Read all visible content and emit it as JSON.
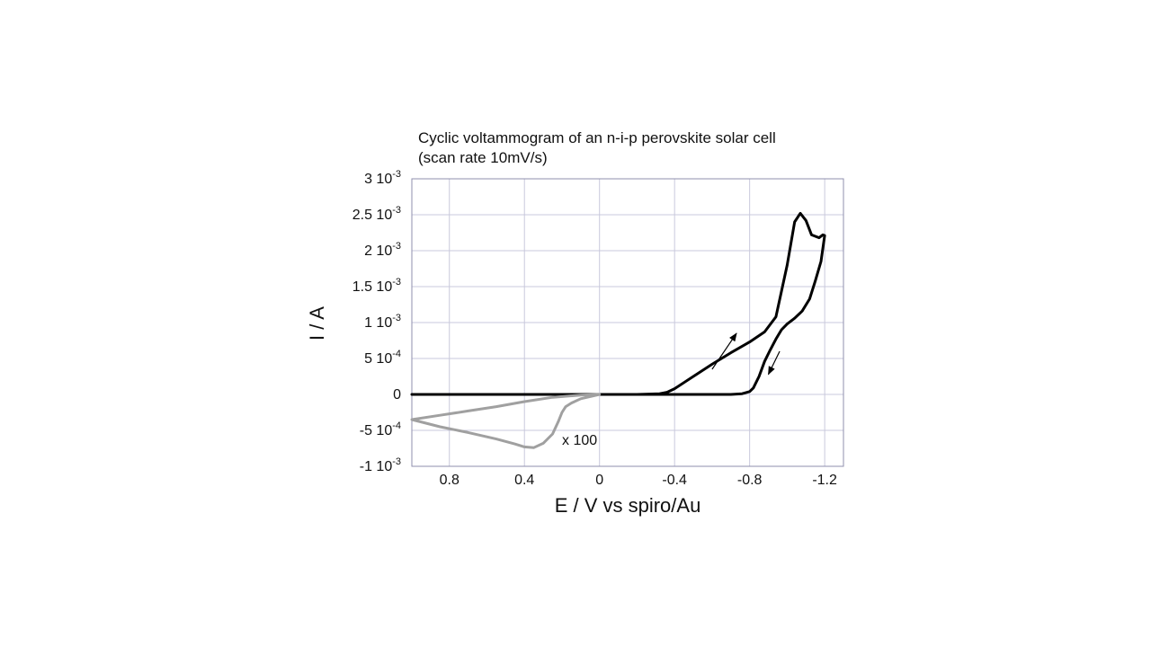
{
  "chart_data": {
    "type": "line",
    "title_lines": [
      "Cyclic voltammogram of an n-i-p perovskite solar cell",
      "(scan rate 10mV/s)"
    ],
    "xlabel": "E / V vs spiro/Au",
    "ylabel": "I / A",
    "xlim": [
      1.0,
      -1.3
    ],
    "ylim": [
      -0.001,
      0.003
    ],
    "x_reversed": true,
    "grid": true,
    "x_ticks": [
      {
        "value": 0.8,
        "label": "0.8"
      },
      {
        "value": 0.4,
        "label": "0.4"
      },
      {
        "value": 0,
        "label": "0"
      },
      {
        "value": -0.4,
        "label": "-0.4"
      },
      {
        "value": -0.8,
        "label": "-0.8"
      },
      {
        "value": -1.2,
        "label": "-1.2"
      }
    ],
    "y_ticks": [
      {
        "value": 0.003,
        "mantissa": "3 10",
        "exp": "-3"
      },
      {
        "value": 0.0025,
        "mantissa": "2.5 10",
        "exp": "-3"
      },
      {
        "value": 0.002,
        "mantissa": "2 10",
        "exp": "-3"
      },
      {
        "value": 0.0015,
        "mantissa": "1.5 10",
        "exp": "-3"
      },
      {
        "value": 0.001,
        "mantissa": "1 10",
        "exp": "-3"
      },
      {
        "value": 0.0005,
        "mantissa": "5 10",
        "exp": "-4"
      },
      {
        "value": 0,
        "mantissa": "0",
        "exp": ""
      },
      {
        "value": -0.0005,
        "mantissa": "-5 10",
        "exp": "-4"
      },
      {
        "value": -0.001,
        "mantissa": "-1 10",
        "exp": "-3"
      }
    ],
    "series": [
      {
        "color": "#000000",
        "x": [
          1.0,
          0.5,
          0.0,
          -0.2,
          -0.32,
          -0.36,
          -0.4,
          -0.5,
          -0.6,
          -0.7,
          -0.8,
          -0.88,
          -0.94,
          -1.0,
          -1.04,
          -1.07,
          -1.1,
          -1.13,
          -1.17,
          -1.19,
          -1.2,
          -1.18,
          -1.15,
          -1.12,
          -1.08,
          -1.04,
          -1.0,
          -0.97,
          -0.94,
          -0.91,
          -0.88,
          -0.85,
          -0.82,
          -0.8,
          -0.76,
          -0.7,
          -0.6,
          -0.4,
          -0.2,
          0.0
        ],
        "y": [
          0.0,
          0.0,
          0.0,
          0.0,
          1e-05,
          3e-05,
          8e-05,
          0.00025,
          0.00042,
          0.00058,
          0.00073,
          0.00087,
          0.00108,
          0.0018,
          0.0024,
          0.00252,
          0.00242,
          0.00222,
          0.00218,
          0.00222,
          0.00221,
          0.00185,
          0.00158,
          0.00133,
          0.00116,
          0.00106,
          0.00098,
          0.0009,
          0.00077,
          0.00062,
          0.00046,
          0.00025,
          9e-05,
          4e-05,
          1e-05,
          0.0,
          0.0,
          0.0,
          0.0,
          0.0
        ]
      },
      {
        "color": "#a0a0a0",
        "annotation": "x 100",
        "x": [
          0.0,
          0.1,
          0.15,
          0.18,
          0.2,
          0.22,
          0.25,
          0.3,
          0.35,
          0.4,
          0.45,
          0.55,
          0.7,
          0.85,
          1.0,
          0.85,
          0.7,
          0.55,
          0.4,
          0.25,
          0.1,
          0.0
        ],
        "y": [
          0.0,
          -6e-05,
          -0.00012,
          -0.00017,
          -0.00025,
          -0.00038,
          -0.00055,
          -0.00068,
          -0.00074,
          -0.00073,
          -0.00069,
          -0.00062,
          -0.00053,
          -0.00045,
          -0.00035,
          -0.00029,
          -0.00023,
          -0.00017,
          -0.0001,
          -4e-05,
          -1e-05,
          0.0
        ]
      }
    ],
    "arrows": [
      {
        "from": [
          -0.6,
          0.00035
        ],
        "to": [
          -0.73,
          0.00085
        ],
        "stroke": "#000000",
        "width": 1.2
      },
      {
        "from": [
          -0.96,
          0.0006
        ],
        "to": [
          -0.9,
          0.00028
        ],
        "stroke": "#000000",
        "width": 1.2
      }
    ]
  }
}
